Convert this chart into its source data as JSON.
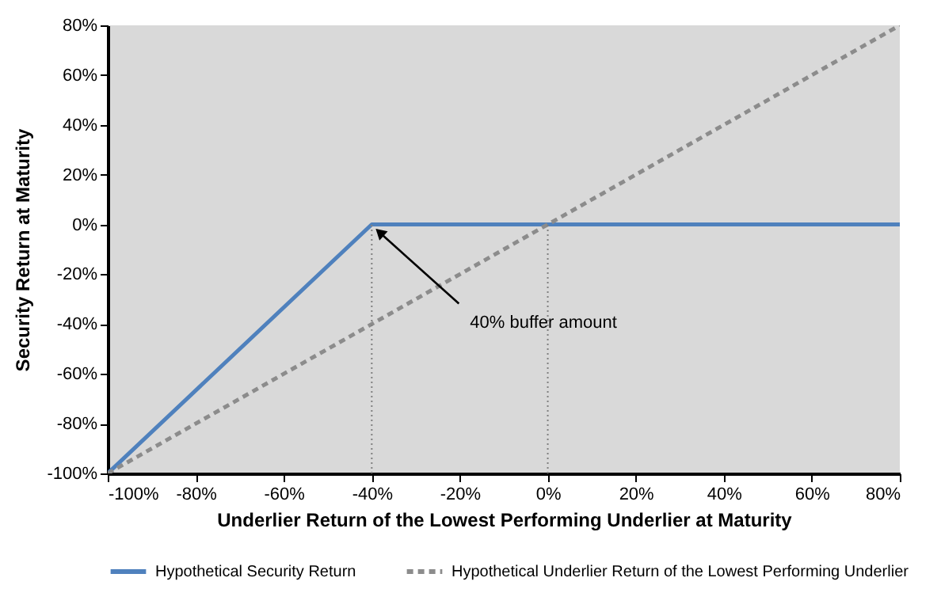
{
  "chart_data": {
    "type": "line",
    "xlabel": "Underlier Return of the Lowest Performing Underlier at Maturity",
    "ylabel": "Security Return at Maturity",
    "xlim": [
      -100,
      80
    ],
    "ylim": [
      -100,
      80
    ],
    "xticks": [
      {
        "value": -100,
        "label": "-100%"
      },
      {
        "value": -80,
        "label": "-80%"
      },
      {
        "value": -60,
        "label": "-60%"
      },
      {
        "value": -40,
        "label": "-40%"
      },
      {
        "value": -20,
        "label": "-20%"
      },
      {
        "value": 0,
        "label": "0%"
      },
      {
        "value": 20,
        "label": "20%"
      },
      {
        "value": 40,
        "label": "40%"
      },
      {
        "value": 60,
        "label": "60%"
      },
      {
        "value": 80,
        "label": "80%"
      }
    ],
    "yticks": [
      {
        "value": -100,
        "label": "-100%"
      },
      {
        "value": -80,
        "label": "-80%"
      },
      {
        "value": -60,
        "label": "-60%"
      },
      {
        "value": -40,
        "label": "-40%"
      },
      {
        "value": -20,
        "label": "-20%"
      },
      {
        "value": 0,
        "label": "0%"
      },
      {
        "value": 20,
        "label": "20%"
      },
      {
        "value": 40,
        "label": "40%"
      },
      {
        "value": 60,
        "label": "60%"
      },
      {
        "value": 80,
        "label": "80%"
      }
    ],
    "series": [
      {
        "name": "Hypothetical Security Return",
        "color": "#4f81bd",
        "x": [
          -100,
          -40,
          80
        ],
        "values": [
          -100,
          0,
          0
        ],
        "line_style": "solid"
      },
      {
        "name": "Hypothetical Underlier Return of the Lowest Performing Underlier",
        "color": "#8c8c8c",
        "x": [
          -100,
          80
        ],
        "values": [
          -100,
          80
        ],
        "line_style": "dashed"
      },
      {
        "color": "#808080",
        "x": [
          -40,
          -40
        ],
        "values": [
          -100,
          0
        ],
        "line_style": "dotted"
      },
      {
        "color": "#808080",
        "x": [
          0,
          0
        ],
        "values": [
          -100,
          0
        ],
        "line_style": "dotted"
      }
    ],
    "annotations": [
      {
        "text": "40% buffer amount",
        "x": -40,
        "y": 0
      }
    ],
    "legend": "bottom",
    "grid": false
  }
}
